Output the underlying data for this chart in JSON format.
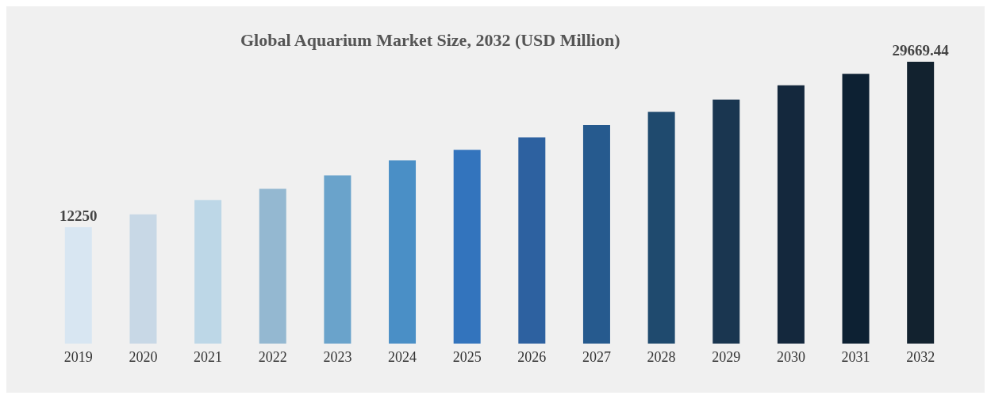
{
  "chart_data": {
    "type": "bar",
    "title": "Global Aquarium Market Size, 2032 (USD Million)",
    "categories": [
      "2019",
      "2020",
      "2021",
      "2022",
      "2023",
      "2024",
      "2025",
      "2026",
      "2027",
      "2028",
      "2029",
      "2030",
      "2031",
      "2032"
    ],
    "values": [
      12250,
      13600,
      15100,
      16300,
      17700,
      19300,
      20400,
      21700,
      23000,
      24400,
      25700,
      27200,
      28400,
      29669.44
    ],
    "colors": [
      "#d8e6f2",
      "#c8d8e6",
      "#bdd7e7",
      "#94b8d1",
      "#6aa3cb",
      "#4a8fc6",
      "#3374bd",
      "#2d61a0",
      "#265a8e",
      "#1f4a6e",
      "#1a3650",
      "#14283d",
      "#0d2133",
      "#12222f"
    ],
    "value_labels": [
      "12250",
      null,
      null,
      null,
      null,
      null,
      null,
      null,
      null,
      null,
      null,
      null,
      null,
      "29669.44"
    ]
  }
}
